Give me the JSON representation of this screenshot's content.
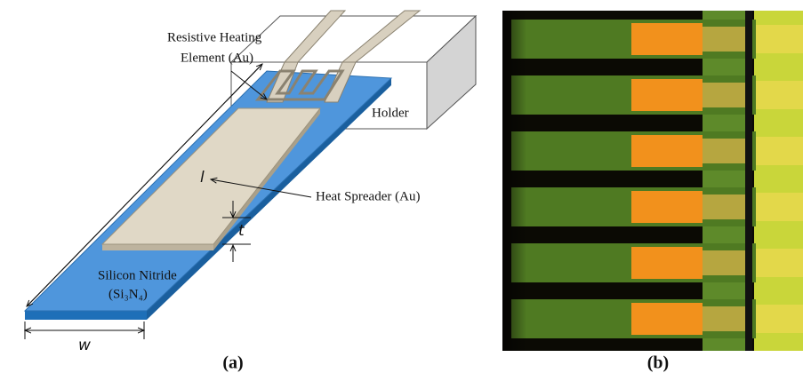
{
  "annotations": {
    "heating_element": [
      "Resistive Heating",
      "Element (Au)"
    ],
    "holder": "Holder",
    "heat_spreader": "Heat Spreader (Au)",
    "length": "l",
    "thickness": "t",
    "width": "w",
    "substrate": [
      "Silicon Nitride",
      "(Si₃N₄)"
    ]
  },
  "panels": [
    "(a)",
    "(b)"
  ]
}
